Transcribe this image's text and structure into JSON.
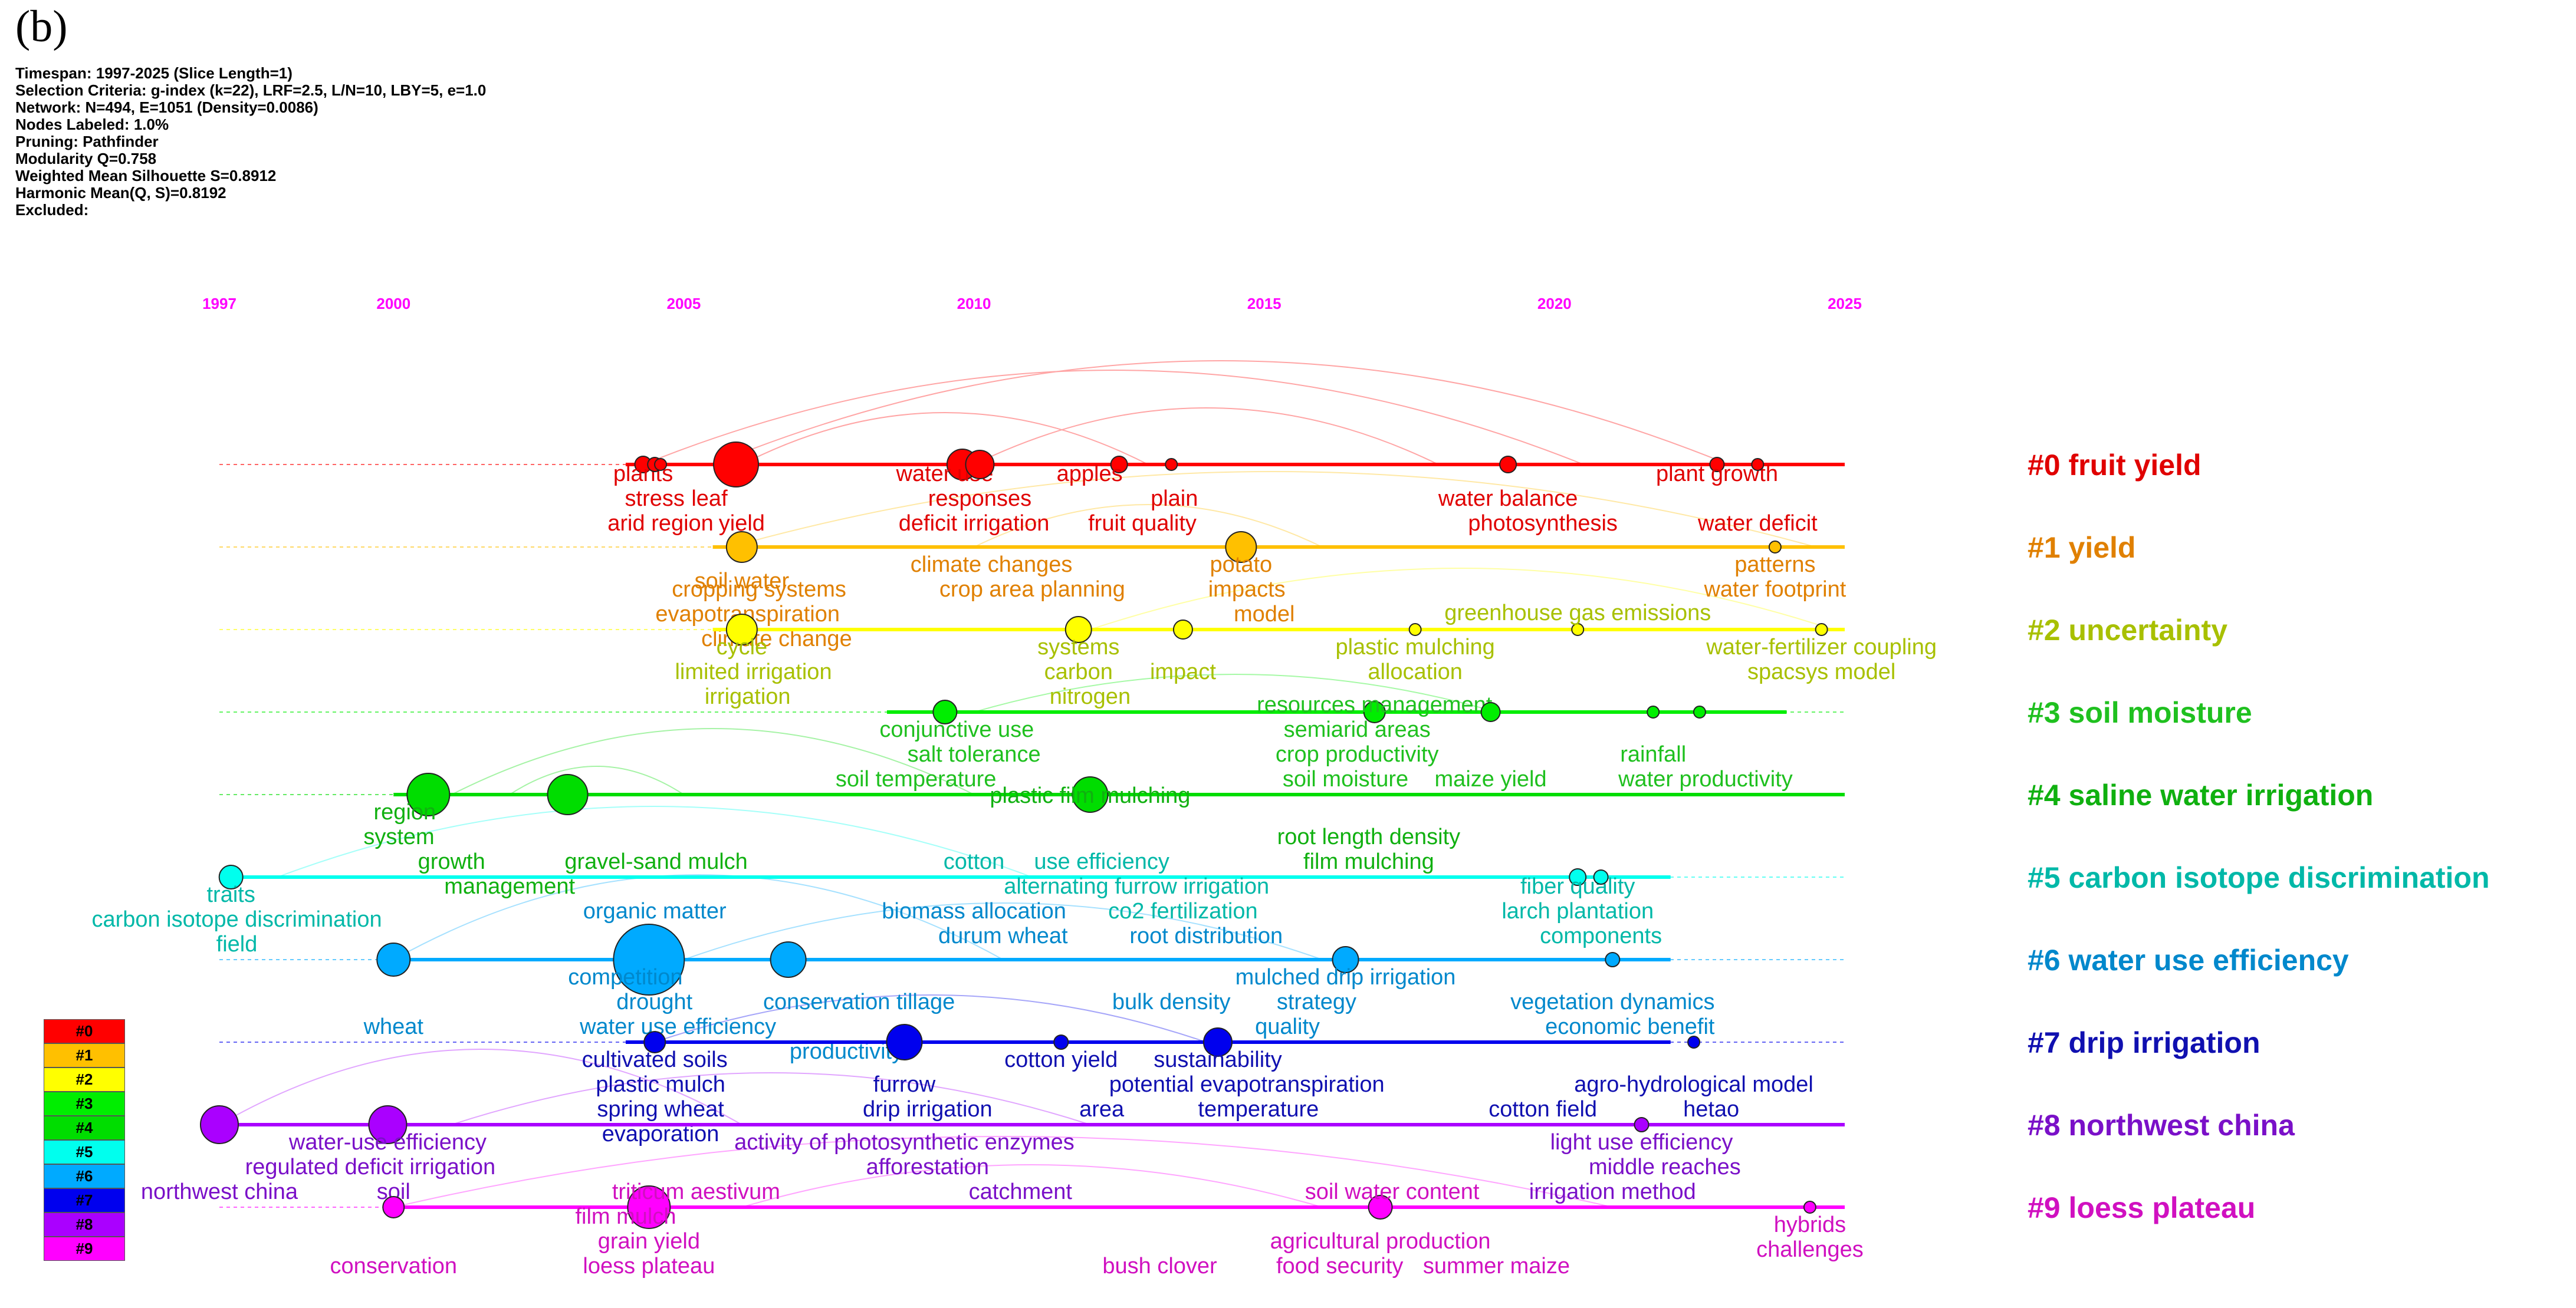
{
  "panel_tag": "(b)",
  "meta_lines": [
    "Timespan: 1997-2025 (Slice Length=1)",
    "Selection Criteria: g-index (k=22), LRF=2.5, L/N=10, LBY=5, e=1.0",
    "Network: N=494, E=1051 (Density=0.0086)",
    "Nodes Labeled: 1.0%",
    "Pruning: Pathfinder",
    "Modularity Q=0.758",
    "Weighted Mean Silhouette S=0.8912",
    "Harmonic Mean(Q, S)=0.8192",
    "Excluded:"
  ],
  "year_ticks": [
    "1997",
    "2000",
    "2005",
    "2010",
    "2015",
    "2020",
    "2025"
  ],
  "clusters": [
    {
      "id": "#0",
      "label": "#0 fruit yield",
      "color": "#ff0000",
      "text_color": "#e00000",
      "start_year": 2004.0,
      "end_year": 2025.0,
      "terms": [
        "plants",
        "stress",
        "arid region",
        "leaf",
        "yield",
        "water use",
        "responses",
        "deficit irrigation",
        "apples",
        "plain",
        "fruit quality",
        "water balance",
        "photosynthesis",
        "plant growth",
        "water deficit"
      ]
    },
    {
      "id": "#1",
      "label": "#1 yield",
      "color": "#ffc000",
      "text_color": "#e08000",
      "start_year": 2005.5,
      "end_year": 2025.0,
      "terms": [
        "soil water",
        "climate changes",
        "crop area planning",
        "cropping systems",
        "evapotranspiration",
        "climate change",
        "potato",
        "impacts",
        "model",
        "patterns",
        "water footprint"
      ]
    },
    {
      "id": "#2",
      "label": "#2 uncertainty",
      "color": "#ffff00",
      "text_color": "#a8c000",
      "start_year": 2005.5,
      "end_year": 2025.0,
      "terms": [
        "cycle",
        "limited irrigation",
        "irrigation",
        "systems",
        "carbon",
        "nitrogen",
        "impact",
        "plastic mulching",
        "allocation",
        "greenhouse gas emissions",
        "water-fertilizer coupling",
        "spacsys model"
      ]
    },
    {
      "id": "#3",
      "label": "#3 soil moisture",
      "color": "#00ee00",
      "text_color": "#1fc01f",
      "start_year": 2008.5,
      "end_year": 2024.0,
      "terms": [
        "conjunctive use",
        "salt tolerance",
        "soil temperature",
        "semiarid areas",
        "crop productivity",
        "resources management",
        "soil moisture",
        "maize yield",
        "rainfall",
        "water productivity"
      ]
    },
    {
      "id": "#4",
      "label": "#4 saline water irrigation",
      "color": "#00dd00",
      "text_color": "#10b010",
      "start_year": 2000.0,
      "end_year": 2025.0,
      "terms": [
        "region",
        "system",
        "growth",
        "gravel-sand mulch",
        "management",
        "plastic film mulching",
        "root length density",
        "film mulching"
      ]
    },
    {
      "id": "#5",
      "label": "#5 carbon isotope discrimination",
      "color": "#00ffee",
      "text_color": "#00b8a8",
      "start_year": 1997.0,
      "end_year": 2022.0,
      "terms": [
        "traits",
        "carbon isotope discrimination",
        "field",
        "cotton",
        "use efficiency",
        "alternating furrow irrigation",
        "co2 fertilization",
        "fiber quality",
        "larch plantation",
        "components"
      ]
    },
    {
      "id": "#6",
      "label": "#6 water use efficiency",
      "color": "#00aaff",
      "text_color": "#0088cc",
      "start_year": 2000.0,
      "end_year": 2022.0,
      "terms": [
        "organic matter",
        "biomass allocation",
        "durum wheat",
        "root distribution",
        "competition",
        "drought",
        "conservation tillage",
        "bulk density",
        "mulched drip irrigation",
        "strategy",
        "quality",
        "vegetation dynamics",
        "economic benefit",
        "wheat",
        "water use efficiency",
        "productivity"
      ]
    },
    {
      "id": "#7",
      "label": "#7 drip irrigation",
      "color": "#0000ee",
      "text_color": "#1010b0",
      "start_year": 2004.0,
      "end_year": 2022.0,
      "terms": [
        "cultivated soils",
        "plastic mulch",
        "spring wheat",
        "evaporation",
        "cotton yield",
        "sustainability",
        "furrow",
        "drip irrigation",
        "potential evapotranspiration",
        "area",
        "temperature",
        "agro-hydrological model",
        "cotton field",
        "hetao"
      ]
    },
    {
      "id": "#8",
      "label": "#8 northwest china",
      "color": "#aa00ff",
      "text_color": "#7a10c8",
      "start_year": 1997.0,
      "end_year": 2025.0,
      "terms": [
        "water-use efficiency",
        "regulated deficit irrigation",
        "northwest china",
        "soil",
        "activity of photosynthetic enzymes",
        "afforestation",
        "catchment",
        "light use efficiency",
        "middle reaches",
        "irrigation method"
      ]
    },
    {
      "id": "#9",
      "label": "#9 loess plateau",
      "color": "#ff00ff",
      "text_color": "#d010c0",
      "start_year": 2000.0,
      "end_year": 2025.0,
      "terms": [
        "triticum aestivum",
        "film mulch",
        "grain yield",
        "loess plateau",
        "conservation",
        "soil water content",
        "agricultural production",
        "food security",
        "summer maize",
        "hybrids",
        "challenges",
        "bush clover"
      ]
    }
  ],
  "legend_items": [
    "#0",
    "#1",
    "#2",
    "#3",
    "#4",
    "#5",
    "#6",
    "#7",
    "#8",
    "#9"
  ]
}
